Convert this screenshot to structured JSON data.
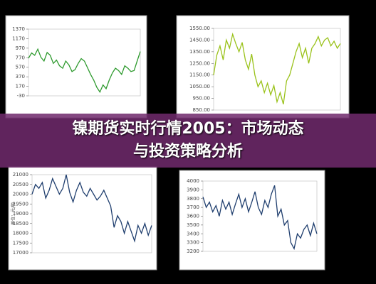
{
  "banner": {
    "line1": "镍期货实时行情2005：市场动态",
    "line2": "与投资策略分析"
  },
  "chart_data": [
    {
      "type": "line",
      "color": "#2e9a2e",
      "ylim": [
        -30,
        1370
      ],
      "yticks": [
        -30,
        170,
        370,
        570,
        770,
        970,
        1170,
        1370
      ],
      "values": [
        760,
        870,
        820,
        950,
        780,
        700,
        880,
        820,
        650,
        720,
        600,
        550,
        700,
        620,
        480,
        520,
        650,
        750,
        700,
        560,
        420,
        300,
        150,
        50,
        200,
        120,
        300,
        450,
        550,
        500,
        420,
        600,
        550,
        480,
        500,
        700,
        900
      ]
    },
    {
      "type": "line",
      "color": "#9ac21a",
      "ylim": [
        850,
        1550
      ],
      "yticks": [
        {
          "value": 850,
          "label": "850.00"
        },
        {
          "value": 950,
          "label": "950.00"
        },
        {
          "value": 1050,
          "label": "1050.00"
        },
        {
          "value": 1150,
          "label": "1150.00"
        },
        {
          "value": 1250,
          "label": "1250.00"
        },
        {
          "value": 1350,
          "label": "1350.00"
        },
        {
          "value": 1450,
          "label": "1450.00"
        },
        {
          "value": 1550,
          "label": "1550.00"
        }
      ],
      "values": [
        1150,
        1320,
        1400,
        1280,
        1450,
        1380,
        1500,
        1420,
        1350,
        1430,
        1280,
        1200,
        1330,
        1150,
        1050,
        1100,
        1000,
        1080,
        980,
        1060,
        920,
        1000,
        900,
        1100,
        1150,
        1250,
        1350,
        1420,
        1300,
        1380,
        1250,
        1380,
        1420,
        1480,
        1400,
        1450,
        1470,
        1400,
        1440,
        1380,
        1420
      ]
    },
    {
      "type": "line",
      "color": "#1f3e6e",
      "ylim": [
        17000,
        21000
      ],
      "y_label": "单位：元/吨",
      "yticks": [
        17000,
        17500,
        18000,
        18500,
        19000,
        19500,
        20000,
        20500,
        21000
      ],
      "values": [
        20000,
        20500,
        20300,
        20600,
        19800,
        20200,
        20800,
        20400,
        20000,
        20300,
        21000,
        20100,
        19600,
        20200,
        20600,
        20100,
        19900,
        20300,
        20000,
        19700,
        19900,
        20200,
        19800,
        19400,
        18300,
        18900,
        18600,
        18000,
        18600,
        18100,
        17600,
        18400,
        18000,
        18500,
        17900,
        18400
      ]
    },
    {
      "type": "line",
      "color": "#1f3e6e",
      "ylim": [
        3200,
        4000
      ],
      "yticks": [
        3200,
        3300,
        3400,
        3500,
        3600,
        3700,
        3800,
        3900,
        4000
      ],
      "values": [
        3820,
        3700,
        3760,
        3650,
        3720,
        3600,
        3780,
        3680,
        3760,
        3620,
        3740,
        3850,
        3700,
        3800,
        3650,
        3760,
        3880,
        3700,
        3620,
        3780,
        3700,
        3850,
        3950,
        3600,
        3680,
        3500,
        3550,
        3300,
        3230,
        3400,
        3350,
        3450,
        3500,
        3380,
        3520,
        3400
      ]
    }
  ]
}
